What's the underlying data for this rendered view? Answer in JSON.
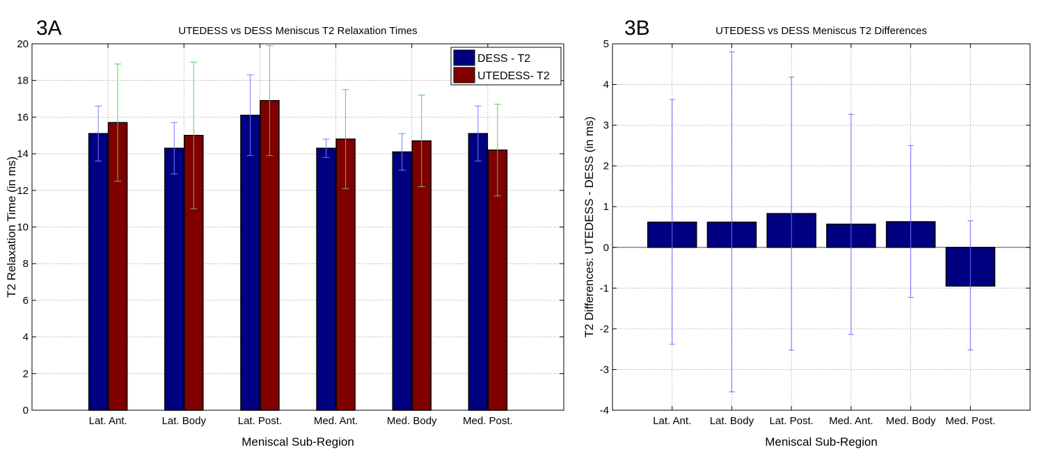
{
  "chart_data": [
    {
      "panel": "3A",
      "type": "bar",
      "title": "UTEDESS vs DESS Meniscus T2 Relaxation Times",
      "xlabel": "Meniscal Sub-Region",
      "ylabel": "T2 Relaxation Time (in ms)",
      "ylim": [
        0,
        20
      ],
      "yticks": [
        0,
        2,
        4,
        6,
        8,
        10,
        12,
        14,
        16,
        18,
        20
      ],
      "grid": true,
      "legend_position": "top-right",
      "categories": [
        "Lat. Ant.",
        "Lat. Body",
        "Lat. Post.",
        "Med. Ant.",
        "Med. Body",
        "Med. Post."
      ],
      "series": [
        {
          "name": "DESS - T2",
          "color": "#000080",
          "error_color": "#7b7bff",
          "values": [
            15.1,
            14.3,
            16.1,
            14.3,
            14.1,
            15.1
          ],
          "error_upper": [
            16.6,
            15.7,
            18.3,
            14.8,
            15.1,
            16.6
          ],
          "error_lower": [
            13.6,
            12.9,
            13.9,
            13.8,
            13.1,
            13.6
          ]
        },
        {
          "name": "UTEDESS- T2",
          "color": "#800000",
          "error_color": "#55cc55",
          "values": [
            15.7,
            15.0,
            16.9,
            14.8,
            14.7,
            14.2
          ],
          "error_upper": [
            18.9,
            19.0,
            19.9,
            17.5,
            17.2,
            16.7
          ],
          "error_lower": [
            12.5,
            11.0,
            13.9,
            12.1,
            12.2,
            11.7
          ]
        }
      ]
    },
    {
      "panel": "3B",
      "type": "bar",
      "title": "UTEDESS vs DESS Meniscus T2 Differences",
      "xlabel": "Meniscal Sub-Region",
      "ylabel": "T2 Differences: UTEDESS - DESS (in ms)",
      "ylim": [
        -4,
        5
      ],
      "yticks": [
        -4,
        -3,
        -2,
        -1,
        0,
        1,
        2,
        3,
        4,
        5
      ],
      "grid": true,
      "categories": [
        "Lat. Ant.",
        "Lat. Body",
        "Lat. Post.",
        "Med. Ant.",
        "Med. Body",
        "Med. Post."
      ],
      "series": [
        {
          "name": "UTEDESS - DESS",
          "color": "#000080",
          "error_color": "#6a6aff",
          "values": [
            0.62,
            0.62,
            0.83,
            0.57,
            0.63,
            -0.95
          ],
          "error_upper": [
            3.63,
            4.8,
            4.18,
            3.27,
            2.5,
            0.65
          ],
          "error_lower": [
            -2.38,
            -3.55,
            -2.52,
            -2.14,
            -1.23,
            -2.52
          ]
        }
      ]
    }
  ]
}
